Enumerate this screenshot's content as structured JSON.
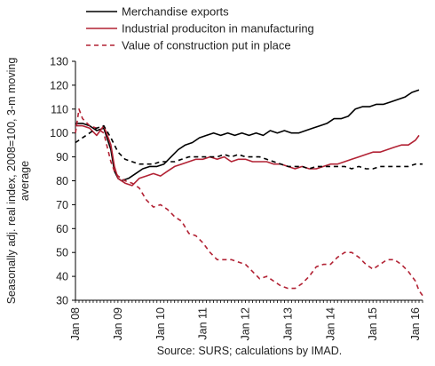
{
  "chart_data": {
    "type": "line",
    "title": "",
    "xlabel": "",
    "ylabel_lines": [
      "Seasonally adj. real index, 2008=100, 3-m moving",
      "average"
    ],
    "ylim": [
      30,
      130
    ],
    "yticks": [
      30,
      40,
      50,
      60,
      70,
      80,
      90,
      100,
      110,
      120,
      130
    ],
    "xlim": [
      "2008-01",
      "2016-03"
    ],
    "x_tick_labels": [
      {
        "x": "2008-01",
        "label": "Jan 08"
      },
      {
        "x": "2009-01",
        "label": "Jan 09"
      },
      {
        "x": "2010-01",
        "label": "Jan 10"
      },
      {
        "x": "2011-01",
        "label": "Jan 11"
      },
      {
        "x": "2012-01",
        "label": "Jan 12"
      },
      {
        "x": "2013-01",
        "label": "Jan 13"
      },
      {
        "x": "2014-01",
        "label": "Jan 14"
      },
      {
        "x": "2015-01",
        "label": "Jan 15"
      },
      {
        "x": "2016-01",
        "label": "Jan 16"
      }
    ],
    "grid": false,
    "legend_position": "top-left",
    "source_note": "Source: SURS; calculations by IMAD.",
    "series": [
      {
        "name": "Merchandise exports",
        "color": "#000000",
        "style": "solid",
        "points": [
          [
            "2008-01",
            104
          ],
          [
            "2008-03",
            104
          ],
          [
            "2008-05",
            103
          ],
          [
            "2008-07",
            101
          ],
          [
            "2008-09",
            102
          ],
          [
            "2008-11",
            93
          ],
          [
            "2008-12",
            84
          ],
          [
            "2009-01",
            81
          ],
          [
            "2009-02",
            80
          ],
          [
            "2009-04",
            81
          ],
          [
            "2009-06",
            83
          ],
          [
            "2009-08",
            85
          ],
          [
            "2009-10",
            86
          ],
          [
            "2009-12",
            86
          ],
          [
            "2010-02",
            87
          ],
          [
            "2010-04",
            90
          ],
          [
            "2010-06",
            93
          ],
          [
            "2010-08",
            95
          ],
          [
            "2010-10",
            96
          ],
          [
            "2010-12",
            98
          ],
          [
            "2011-02",
            99
          ],
          [
            "2011-04",
            100
          ],
          [
            "2011-06",
            99
          ],
          [
            "2011-08",
            100
          ],
          [
            "2011-10",
            99
          ],
          [
            "2011-12",
            100
          ],
          [
            "2012-02",
            99
          ],
          [
            "2012-04",
            100
          ],
          [
            "2012-06",
            99
          ],
          [
            "2012-08",
            101
          ],
          [
            "2012-10",
            100
          ],
          [
            "2012-12",
            101
          ],
          [
            "2013-02",
            100
          ],
          [
            "2013-04",
            100
          ],
          [
            "2013-06",
            101
          ],
          [
            "2013-08",
            102
          ],
          [
            "2013-10",
            103
          ],
          [
            "2013-12",
            104
          ],
          [
            "2014-02",
            106
          ],
          [
            "2014-04",
            106
          ],
          [
            "2014-06",
            107
          ],
          [
            "2014-08",
            110
          ],
          [
            "2014-10",
            111
          ],
          [
            "2014-12",
            111
          ],
          [
            "2015-02",
            112
          ],
          [
            "2015-04",
            112
          ],
          [
            "2015-06",
            113
          ],
          [
            "2015-08",
            114
          ],
          [
            "2015-10",
            115
          ],
          [
            "2015-12",
            117
          ],
          [
            "2016-02",
            118
          ]
        ]
      },
      {
        "name": "Industrial produciton in manufacturing",
        "color": "#b22234",
        "style": "solid",
        "points": [
          [
            "2008-01",
            103
          ],
          [
            "2008-03",
            103
          ],
          [
            "2008-05",
            102
          ],
          [
            "2008-07",
            99
          ],
          [
            "2008-09",
            103
          ],
          [
            "2008-11",
            95
          ],
          [
            "2008-12",
            86
          ],
          [
            "2009-01",
            81
          ],
          [
            "2009-03",
            79
          ],
          [
            "2009-05",
            78
          ],
          [
            "2009-07",
            81
          ],
          [
            "2009-09",
            82
          ],
          [
            "2009-11",
            83
          ],
          [
            "2010-01",
            82
          ],
          [
            "2010-03",
            84
          ],
          [
            "2010-05",
            86
          ],
          [
            "2010-07",
            87
          ],
          [
            "2010-09",
            88
          ],
          [
            "2010-11",
            89
          ],
          [
            "2011-01",
            89
          ],
          [
            "2011-03",
            90
          ],
          [
            "2011-05",
            89
          ],
          [
            "2011-07",
            90
          ],
          [
            "2011-09",
            88
          ],
          [
            "2011-11",
            89
          ],
          [
            "2012-01",
            89
          ],
          [
            "2012-03",
            88
          ],
          [
            "2012-05",
            88
          ],
          [
            "2012-07",
            88
          ],
          [
            "2012-09",
            87
          ],
          [
            "2012-11",
            87
          ],
          [
            "2013-01",
            86
          ],
          [
            "2013-03",
            85
          ],
          [
            "2013-05",
            86
          ],
          [
            "2013-07",
            85
          ],
          [
            "2013-09",
            85
          ],
          [
            "2013-11",
            86
          ],
          [
            "2014-01",
            87
          ],
          [
            "2014-03",
            87
          ],
          [
            "2014-05",
            88
          ],
          [
            "2014-07",
            89
          ],
          [
            "2014-09",
            90
          ],
          [
            "2014-11",
            91
          ],
          [
            "2015-01",
            92
          ],
          [
            "2015-03",
            92
          ],
          [
            "2015-05",
            93
          ],
          [
            "2015-07",
            94
          ],
          [
            "2015-09",
            95
          ],
          [
            "2015-11",
            95
          ],
          [
            "2016-01",
            97
          ],
          [
            "2016-02",
            99
          ]
        ]
      },
      {
        "name": "Value of construction put in place",
        "color": "#b22234",
        "style": "dashed",
        "points": [
          [
            "2008-01",
            100
          ],
          [
            "2008-02",
            110
          ],
          [
            "2008-03",
            106
          ],
          [
            "2008-05",
            103
          ],
          [
            "2008-07",
            102
          ],
          [
            "2008-09",
            100
          ],
          [
            "2008-11",
            88
          ],
          [
            "2008-12",
            84
          ],
          [
            "2009-01",
            82
          ],
          [
            "2009-03",
            80
          ],
          [
            "2009-05",
            79
          ],
          [
            "2009-07",
            77
          ],
          [
            "2009-09",
            72
          ],
          [
            "2009-11",
            69
          ],
          [
            "2010-01",
            70
          ],
          [
            "2010-03",
            68
          ],
          [
            "2010-05",
            65
          ],
          [
            "2010-07",
            63
          ],
          [
            "2010-09",
            58
          ],
          [
            "2010-11",
            57
          ],
          [
            "2011-01",
            54
          ],
          [
            "2011-03",
            50
          ],
          [
            "2011-05",
            47
          ],
          [
            "2011-07",
            47
          ],
          [
            "2011-09",
            47
          ],
          [
            "2011-11",
            46
          ],
          [
            "2012-01",
            45
          ],
          [
            "2012-03",
            42
          ],
          [
            "2012-05",
            39
          ],
          [
            "2012-07",
            40
          ],
          [
            "2012-09",
            38
          ],
          [
            "2012-11",
            36
          ],
          [
            "2013-01",
            35
          ],
          [
            "2013-03",
            35
          ],
          [
            "2013-05",
            37
          ],
          [
            "2013-07",
            40
          ],
          [
            "2013-09",
            44
          ],
          [
            "2013-11",
            45
          ],
          [
            "2014-01",
            45
          ],
          [
            "2014-03",
            48
          ],
          [
            "2014-05",
            50
          ],
          [
            "2014-07",
            50
          ],
          [
            "2014-09",
            48
          ],
          [
            "2014-11",
            45
          ],
          [
            "2015-01",
            43
          ],
          [
            "2015-03",
            45
          ],
          [
            "2015-05",
            47
          ],
          [
            "2015-07",
            47
          ],
          [
            "2015-09",
            45
          ],
          [
            "2015-11",
            42
          ],
          [
            "2016-01",
            38
          ],
          [
            "2016-02",
            34
          ],
          [
            "2016-03",
            32
          ]
        ]
      },
      {
        "name": "",
        "color": "#000000",
        "style": "dashed",
        "points": [
          [
            "2008-01",
            96
          ],
          [
            "2008-03",
            98
          ],
          [
            "2008-05",
            100
          ],
          [
            "2008-07",
            102
          ],
          [
            "2008-09",
            103
          ],
          [
            "2008-11",
            98
          ],
          [
            "2009-01",
            92
          ],
          [
            "2009-03",
            89
          ],
          [
            "2009-05",
            88
          ],
          [
            "2009-07",
            87
          ],
          [
            "2009-09",
            87
          ],
          [
            "2009-11",
            87
          ],
          [
            "2010-01",
            88
          ],
          [
            "2010-03",
            88
          ],
          [
            "2010-05",
            88
          ],
          [
            "2010-07",
            89
          ],
          [
            "2010-09",
            90
          ],
          [
            "2010-11",
            90
          ],
          [
            "2011-01",
            90
          ],
          [
            "2011-03",
            90
          ],
          [
            "2011-05",
            90
          ],
          [
            "2011-07",
            91
          ],
          [
            "2011-09",
            90
          ],
          [
            "2011-11",
            91
          ],
          [
            "2012-01",
            90
          ],
          [
            "2012-03",
            90
          ],
          [
            "2012-05",
            90
          ],
          [
            "2012-07",
            89
          ],
          [
            "2012-09",
            88
          ],
          [
            "2012-11",
            87
          ],
          [
            "2013-01",
            86
          ],
          [
            "2013-03",
            86
          ],
          [
            "2013-05",
            86
          ],
          [
            "2013-07",
            85
          ],
          [
            "2013-09",
            86
          ],
          [
            "2013-11",
            86
          ],
          [
            "2014-01",
            86
          ],
          [
            "2014-03",
            86
          ],
          [
            "2014-05",
            86
          ],
          [
            "2014-07",
            85
          ],
          [
            "2014-09",
            86
          ],
          [
            "2014-11",
            85
          ],
          [
            "2015-01",
            85
          ],
          [
            "2015-03",
            86
          ],
          [
            "2015-05",
            86
          ],
          [
            "2015-07",
            86
          ],
          [
            "2015-09",
            86
          ],
          [
            "2015-11",
            86
          ],
          [
            "2016-01",
            87
          ],
          [
            "2016-03",
            87
          ]
        ]
      }
    ]
  }
}
